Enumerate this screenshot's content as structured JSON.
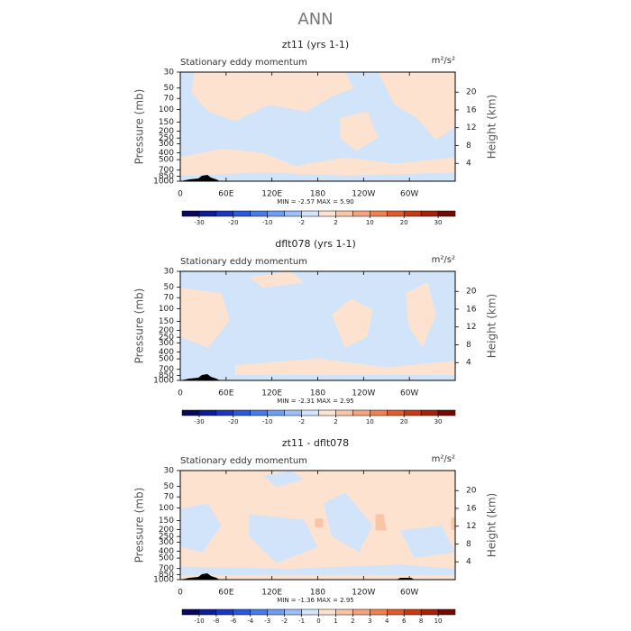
{
  "title": "ANN",
  "chart_data": [
    {
      "type": "contour",
      "title": "zt11 (yrs 1-1)",
      "left_label": "Stationary eddy momentum",
      "units": "m²/s²",
      "ylabel": "Pressure (mb)",
      "y2label": "Height (km)",
      "stats": "MIN =  -2.57   MAX =   5.90",
      "xlim": [
        0,
        360
      ],
      "xticks": [
        0,
        {
          "value": 60,
          "label": "60E"
        },
        {
          "value": 120,
          "label": "120E"
        },
        180,
        {
          "value": 240,
          "label": "120W"
        },
        {
          "value": 300,
          "label": "60W"
        }
      ],
      "ylog": true,
      "ylim": [
        1000,
        30
      ],
      "yticks": [
        30,
        50,
        70,
        100,
        150,
        200,
        250,
        300,
        400,
        500,
        700,
        850,
        1000
      ],
      "y2lim": [
        0,
        24.5
      ],
      "y2ticks": [
        4,
        8,
        12,
        16,
        20
      ],
      "levels": [
        -30,
        -20,
        -10,
        -2,
        2,
        10,
        20,
        30
      ],
      "colors": [
        "#07075f",
        "#0b1e96",
        "#1838c0",
        "#2c58dc",
        "#4a7ae6",
        "#6d9cf0",
        "#9bbff6",
        "#d2e4fa",
        "#fde3cf",
        "#f9c5a6",
        "#f4a47c",
        "#ee8052",
        "#e05a2c",
        "#c83a12",
        "#a52108",
        "#720a02"
      ]
    },
    {
      "type": "contour",
      "title": "dflt078 (yrs 1-1)",
      "left_label": "Stationary eddy momentum",
      "units": "m²/s²",
      "ylabel": "Pressure (mb)",
      "y2label": "Height (km)",
      "stats": "MIN =  -2.31   MAX =   2.95",
      "xlim": [
        0,
        360
      ],
      "xticks": [
        0,
        {
          "value": 60,
          "label": "60E"
        },
        {
          "value": 120,
          "label": "120E"
        },
        180,
        {
          "value": 240,
          "label": "120W"
        },
        {
          "value": 300,
          "label": "60W"
        }
      ],
      "ylog": true,
      "ylim": [
        1000,
        30
      ],
      "yticks": [
        30,
        50,
        70,
        100,
        150,
        200,
        250,
        300,
        400,
        500,
        700,
        850,
        1000
      ],
      "y2lim": [
        0,
        24.5
      ],
      "y2ticks": [
        4,
        8,
        12,
        16,
        20
      ],
      "levels": [
        -30,
        -20,
        -10,
        -2,
        2,
        10,
        20,
        30
      ],
      "colors": [
        "#07075f",
        "#0b1e96",
        "#1838c0",
        "#2c58dc",
        "#4a7ae6",
        "#6d9cf0",
        "#9bbff6",
        "#d2e4fa",
        "#fde3cf",
        "#f9c5a6",
        "#f4a47c",
        "#ee8052",
        "#e05a2c",
        "#c83a12",
        "#a52108",
        "#720a02"
      ]
    },
    {
      "type": "contour",
      "title": "zt11 - dflt078",
      "left_label": "Stationary eddy momentum",
      "units": "m²/s²",
      "ylabel": "Pressure (mb)",
      "y2label": "Height (km)",
      "stats": "MIN =  -1.36   MAX =   2.95",
      "xlim": [
        0,
        360
      ],
      "xticks": [
        0,
        {
          "value": 60,
          "label": "60E"
        },
        {
          "value": 120,
          "label": "120E"
        },
        180,
        {
          "value": 240,
          "label": "120W"
        },
        {
          "value": 300,
          "label": "60W"
        }
      ],
      "ylog": true,
      "ylim": [
        1000,
        30
      ],
      "yticks": [
        30,
        50,
        70,
        100,
        150,
        200,
        250,
        300,
        400,
        500,
        700,
        850,
        1000
      ],
      "y2lim": [
        0,
        24.5
      ],
      "y2ticks": [
        4,
        8,
        12,
        16,
        20
      ],
      "levels": [
        -10,
        -8,
        -6,
        -4,
        -3,
        -2,
        -1,
        0,
        1,
        2,
        3,
        4,
        6,
        8,
        10
      ],
      "colors": [
        "#07075f",
        "#0b1e96",
        "#1838c0",
        "#2c58dc",
        "#4a7ae6",
        "#6d9cf0",
        "#9bbff6",
        "#d2e4fa",
        "#fde3cf",
        "#f9c5a6",
        "#f4a47c",
        "#ee8052",
        "#e05a2c",
        "#c83a12",
        "#a52108",
        "#720a02"
      ]
    }
  ]
}
